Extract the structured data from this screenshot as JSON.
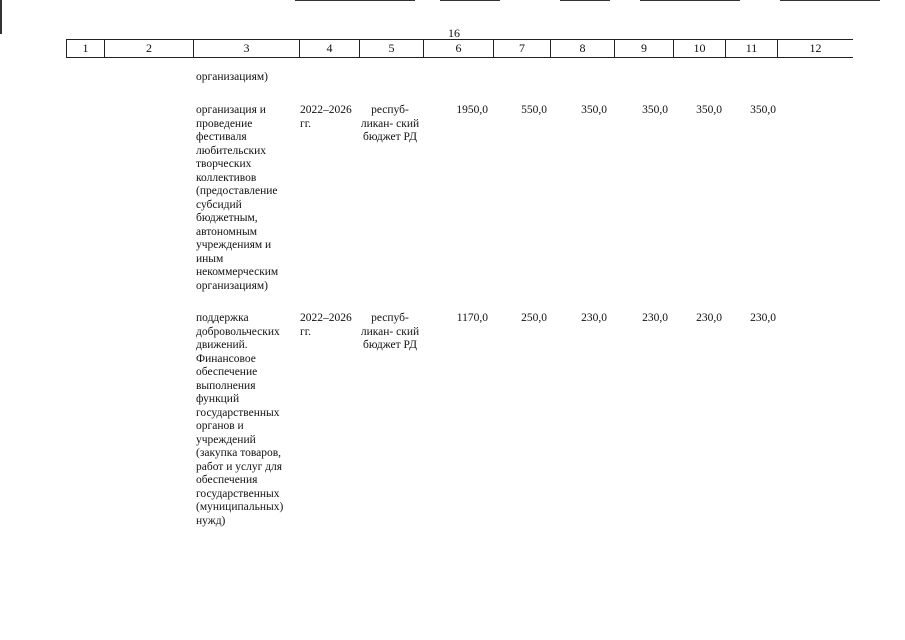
{
  "page_number": "16",
  "columns": [
    "1",
    "2",
    "3",
    "4",
    "5",
    "6",
    "7",
    "8",
    "9",
    "10",
    "11",
    "12"
  ],
  "continuation": {
    "description": "организациям)"
  },
  "rows": [
    {
      "description": "организация и проведение фестиваля любительских творческих коллективов (предоставление субсидий бюджетным, автономным учреждениям и иным некоммерческим организациям)",
      "period": "2022–2026 гг.",
      "source": "респуб- ликан- ский бюджет РД",
      "total": "1950,0",
      "y2022": "550,0",
      "y2023": "350,0",
      "y2024": "350,0",
      "y2025": "350,0",
      "y2026": "350,0"
    },
    {
      "description": "поддержка добровольческих движений. Финансовое обеспечение выполнения функций государственных органов и учреждений (закупка товаров, работ и услуг для обеспечения государственных (муниципальных) нужд)",
      "period": "2022–2026 гг.",
      "source": "респуб- ликан- ский бюджет РД",
      "total": "1170,0",
      "y2022": "250,0",
      "y2023": "230,0",
      "y2024": "230,0",
      "y2025": "230,0",
      "y2026": "230,0"
    }
  ]
}
